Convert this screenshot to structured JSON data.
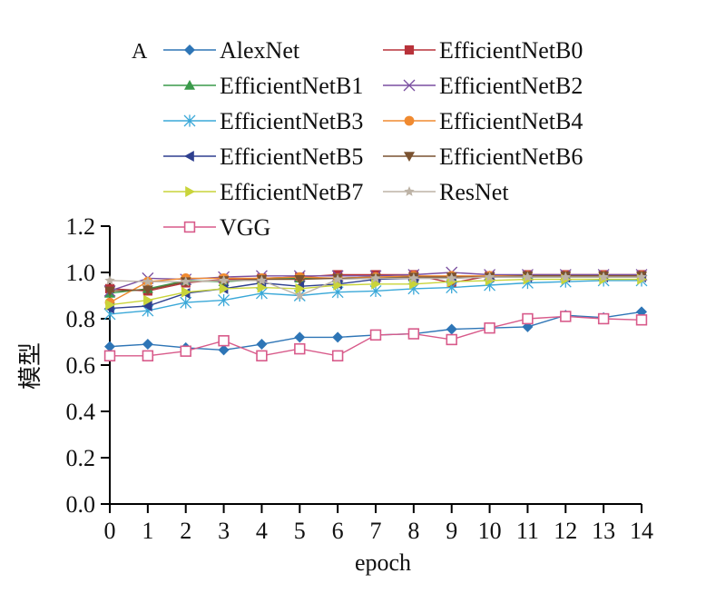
{
  "chart_data": {
    "type": "line",
    "panel_label": "A",
    "title": "",
    "xlabel": "epoch",
    "ylabel": "模型",
    "xlim": [
      0,
      14
    ],
    "ylim": [
      0.0,
      1.2
    ],
    "x": [
      0,
      1,
      2,
      3,
      4,
      5,
      6,
      7,
      8,
      9,
      10,
      11,
      12,
      13,
      14
    ],
    "x_ticks": [
      "0",
      "1",
      "2",
      "3",
      "4",
      "5",
      "6",
      "7",
      "8",
      "9",
      "10",
      "11",
      "12",
      "13",
      "14"
    ],
    "y_ticks": [
      "0.0",
      "0.2",
      "0.4",
      "0.6",
      "0.8",
      "1.0",
      "1.2"
    ],
    "y_tick_values": [
      0.0,
      0.2,
      0.4,
      0.6,
      0.8,
      1.0,
      1.2
    ],
    "grid": false,
    "legend_position": "top",
    "series": [
      {
        "name": "AlexNet",
        "color": "#2e75b6",
        "marker": "diamond",
        "values": [
          0.68,
          0.69,
          0.675,
          0.665,
          0.69,
          0.72,
          0.72,
          0.73,
          0.735,
          0.755,
          0.76,
          0.765,
          0.815,
          0.805,
          0.83
        ]
      },
      {
        "name": "EfficientNetB0",
        "color": "#b8323a",
        "marker": "square",
        "values": [
          0.93,
          0.92,
          0.955,
          0.97,
          0.975,
          0.98,
          0.99,
          0.99,
          0.99,
          0.955,
          0.985,
          0.99,
          0.99,
          0.99,
          0.99
        ]
      },
      {
        "name": "EfficientNetB1",
        "color": "#3a9a4a",
        "marker": "triangle-up",
        "values": [
          0.91,
          0.93,
          0.965,
          0.96,
          0.97,
          0.975,
          0.975,
          0.98,
          0.98,
          0.98,
          0.985,
          0.985,
          0.985,
          0.985,
          0.985
        ]
      },
      {
        "name": "EfficientNetB2",
        "color": "#7a4fa0",
        "marker": "x",
        "values": [
          0.92,
          0.975,
          0.97,
          0.98,
          0.985,
          0.985,
          0.985,
          0.985,
          0.99,
          1.0,
          0.99,
          0.99,
          0.99,
          0.99,
          0.99
        ]
      },
      {
        "name": "EfficientNetB3",
        "color": "#3aa8d8",
        "marker": "asterisk",
        "values": [
          0.82,
          0.835,
          0.87,
          0.88,
          0.91,
          0.9,
          0.915,
          0.92,
          0.93,
          0.935,
          0.945,
          0.955,
          0.96,
          0.965,
          0.965
        ]
      },
      {
        "name": "EfficientNetB4",
        "color": "#f08a30",
        "marker": "circle",
        "values": [
          0.87,
          0.96,
          0.975,
          0.975,
          0.975,
          0.98,
          0.975,
          0.98,
          0.985,
          0.985,
          0.985,
          0.985,
          0.985,
          0.985,
          0.985
        ]
      },
      {
        "name": "EfficientNetB5",
        "color": "#2e3f8f",
        "marker": "triangle-left",
        "values": [
          0.845,
          0.855,
          0.91,
          0.93,
          0.955,
          0.94,
          0.95,
          0.97,
          0.975,
          0.975,
          0.98,
          0.98,
          0.98,
          0.98,
          0.98
        ]
      },
      {
        "name": "EfficientNetB6",
        "color": "#7a5230",
        "marker": "triangle-down",
        "values": [
          0.92,
          0.925,
          0.96,
          0.965,
          0.97,
          0.97,
          0.975,
          0.975,
          0.98,
          0.98,
          0.98,
          0.985,
          0.985,
          0.985,
          0.985
        ]
      },
      {
        "name": "EfficientNetB7",
        "color": "#c9d43a",
        "marker": "triangle-right",
        "values": [
          0.86,
          0.88,
          0.915,
          0.93,
          0.935,
          0.93,
          0.945,
          0.95,
          0.95,
          0.96,
          0.965,
          0.97,
          0.97,
          0.97,
          0.97
        ]
      },
      {
        "name": "ResNet",
        "color": "#bdb3a6",
        "marker": "star",
        "values": [
          0.965,
          0.96,
          0.96,
          0.965,
          0.965,
          0.9,
          0.97,
          0.975,
          0.975,
          0.975,
          0.98,
          0.98,
          0.98,
          0.98,
          0.98
        ]
      },
      {
        "name": "VGG",
        "color": "#d85a8a",
        "marker": "square-open",
        "values": [
          0.64,
          0.64,
          0.66,
          0.705,
          0.64,
          0.67,
          0.64,
          0.73,
          0.735,
          0.71,
          0.76,
          0.8,
          0.81,
          0.8,
          0.795
        ]
      }
    ]
  }
}
